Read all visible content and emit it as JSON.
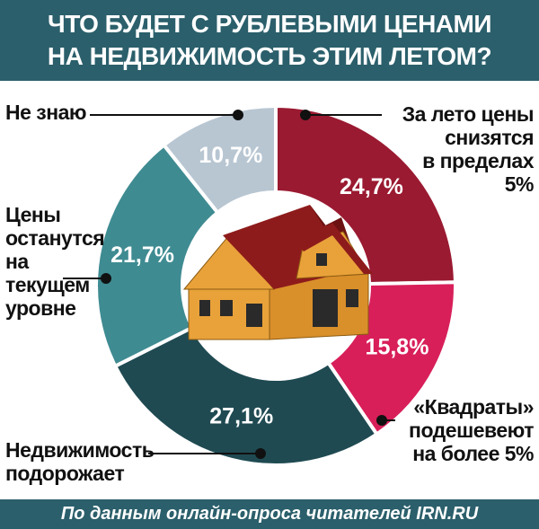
{
  "chart_data": {
    "type": "pie",
    "title": "ЧТО БУДЕТ С РУБЛЕВЫМИ ЦЕНАМИ\nНА НЕДВИЖИМОСТЬ ЭТИМ ЛЕТОМ?",
    "source": "По данным онлайн-опроса читателей IRN.RU",
    "categories": [
      "За лето цены\nснизятся\nв пределах\n5%",
      "«Квадраты»\nподешевеют\nна более 5%",
      "Недвижимость\nподорожает",
      "Цены\nостанутся\nна\nтекущем\nуровне",
      "Не знаю"
    ],
    "values": [
      24.7,
      15.8,
      27.1,
      21.7,
      10.7
    ],
    "value_labels": [
      "24,7%",
      "15,8%",
      "27,1%",
      "21,7%",
      "10,7%"
    ],
    "colors": [
      "#9a1a31",
      "#d81f5a",
      "#1f4a52",
      "#3f8b92",
      "#b8c6d2"
    ],
    "donut": true
  }
}
